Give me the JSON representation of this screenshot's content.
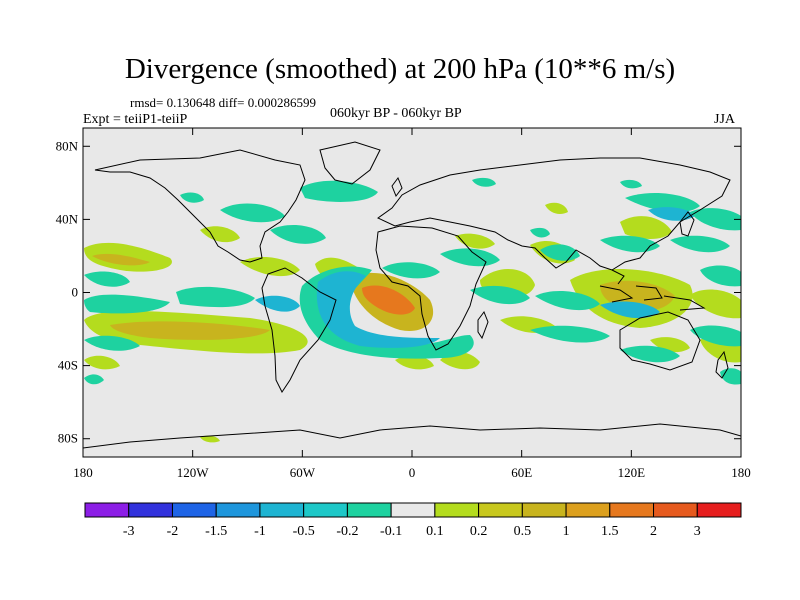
{
  "title": "Divergence (smoothed) at 200 hPa (10**6 m/s)",
  "stats": "rmsd= 0.130648 diff= 0.000286599",
  "experiment": "Expt = teiiP1-teiiP",
  "period": "060kyr BP - 060kyr BP",
  "season": "JJA",
  "colors": {
    "background": "#e8e8e8",
    "positive_weak": "#b4dc1e",
    "positive_mid": "#c8b41e",
    "positive_strong": "#e6781e",
    "negative_weak": "#1ed2a0",
    "negative_mid": "#1eb4d2"
  },
  "map": {
    "type": "filled-contour",
    "projection": "cylindrical-equidistant",
    "lon_range": [
      -180,
      180
    ],
    "lat_range": [
      -90,
      90
    ],
    "lon_ticks": [
      "180",
      "120W",
      "60W",
      "0",
      "60E",
      "120E",
      "180"
    ],
    "lat_ticks": [
      "80N",
      "40N",
      "0",
      "40S",
      "80S"
    ]
  },
  "colorbar": {
    "colors": [
      "#8c1ee6",
      "#3232dc",
      "#1e64e6",
      "#1e96dc",
      "#1eb4d2",
      "#1ec8c8",
      "#1ed2a0",
      "#e8e8e8",
      "#b4dc1e",
      "#c8c81e",
      "#c8b41e",
      "#dca01e",
      "#e6781e",
      "#e65a1e",
      "#e61e1e"
    ],
    "labels": [
      "-3",
      "-2",
      "-1.5",
      "-1",
      "-0.5",
      "-0.2",
      "-0.1",
      "0.1",
      "0.2",
      "0.5",
      "1",
      "1.5",
      "2",
      "3"
    ]
  }
}
